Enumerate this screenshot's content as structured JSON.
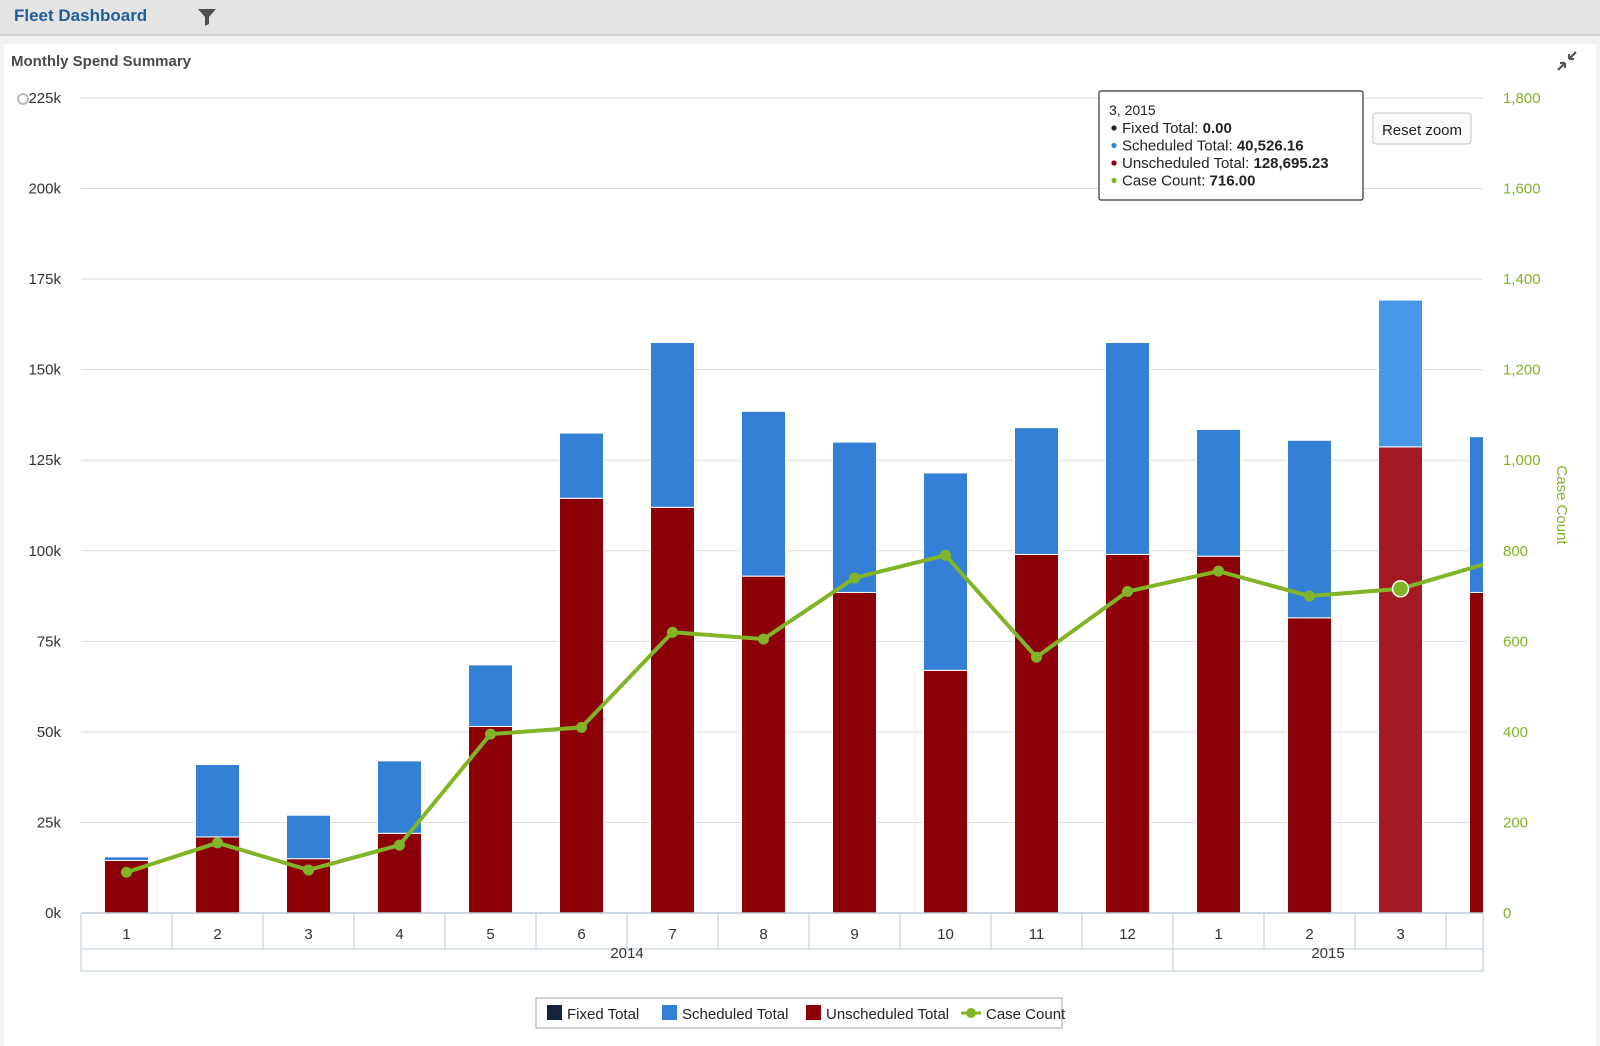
{
  "header": {
    "title": "Fleet Dashboard",
    "filter_icon": "filter-icon"
  },
  "panel": {
    "title": "Monthly Spend Summary",
    "collapse_icon": "collapse-arrows-icon"
  },
  "reset_zoom_label": "Reset zoom",
  "colors": {
    "fixed": "#14243a",
    "scheduled": "#3380d6",
    "scheduled_highlight": "#4898ea",
    "unscheduled": "#8c0008",
    "unscheduled_highlight": "#a31a22",
    "case_count": "#82b428",
    "brand": "#1d5e98"
  },
  "tooltip": {
    "header": "3, 2015",
    "rows": [
      {
        "label": "Fixed Total: ",
        "value": "0.00",
        "color": "#14243a"
      },
      {
        "label": "Scheduled Total: ",
        "value": "40,526.16",
        "color": "#3380d6"
      },
      {
        "label": "Unscheduled Total: ",
        "value": "128,695.23",
        "color": "#8c0008"
      },
      {
        "label": "Case Count: ",
        "value": "716.00",
        "color": "#82b428"
      }
    ]
  },
  "chart_data": {
    "type": "bar",
    "stacked": true,
    "title": "Monthly Spend Summary",
    "categories": [
      "1",
      "2",
      "3",
      "4",
      "5",
      "6",
      "7",
      "8",
      "9",
      "10",
      "11",
      "12",
      "1",
      "2",
      "3",
      ""
    ],
    "groups": [
      {
        "label": "2014",
        "start": 0,
        "end": 11
      },
      {
        "label": "2015",
        "start": 12,
        "end": 15
      }
    ],
    "series": [
      {
        "name": "Fixed Total",
        "type": "column",
        "axis": "left",
        "values": [
          0,
          0,
          0,
          0,
          0,
          0,
          0,
          0,
          0,
          0,
          0,
          0,
          0,
          0,
          0,
          0
        ]
      },
      {
        "name": "Scheduled Total",
        "type": "column",
        "axis": "left",
        "values": [
          1000,
          20000,
          12000,
          20000,
          17000,
          18000,
          45500,
          45500,
          41500,
          54500,
          35000,
          58500,
          35000,
          49000,
          40526.16,
          43000
        ]
      },
      {
        "name": "Unscheduled Total",
        "type": "column",
        "axis": "left",
        "values": [
          14500,
          21000,
          15000,
          22000,
          51500,
          114500,
          112000,
          93000,
          88500,
          67000,
          99000,
          99000,
          98500,
          81500,
          128695.23,
          88500
        ]
      },
      {
        "name": "Case Count",
        "type": "line",
        "axis": "right",
        "values": [
          90,
          155,
          95,
          150,
          395,
          410,
          620,
          605,
          740,
          790,
          565,
          710,
          755,
          700,
          716,
          775
        ]
      }
    ],
    "left_axis": {
      "min": 0,
      "max": 225000,
      "tick_step": 25000,
      "tick_labels": [
        "0k",
        "25k",
        "50k",
        "75k",
        "100k",
        "125k",
        "150k",
        "175k",
        "200k",
        "225k"
      ]
    },
    "right_axis": {
      "label": "Case Count",
      "min": 0,
      "max": 1800,
      "tick_step": 200,
      "tick_labels": [
        "0",
        "200",
        "400",
        "600",
        "800",
        "1,000",
        "1,200",
        "1,400",
        "1,600",
        "1,800"
      ]
    },
    "highlighted_index": 14,
    "grid": true,
    "legend_position": "bottom-center"
  }
}
